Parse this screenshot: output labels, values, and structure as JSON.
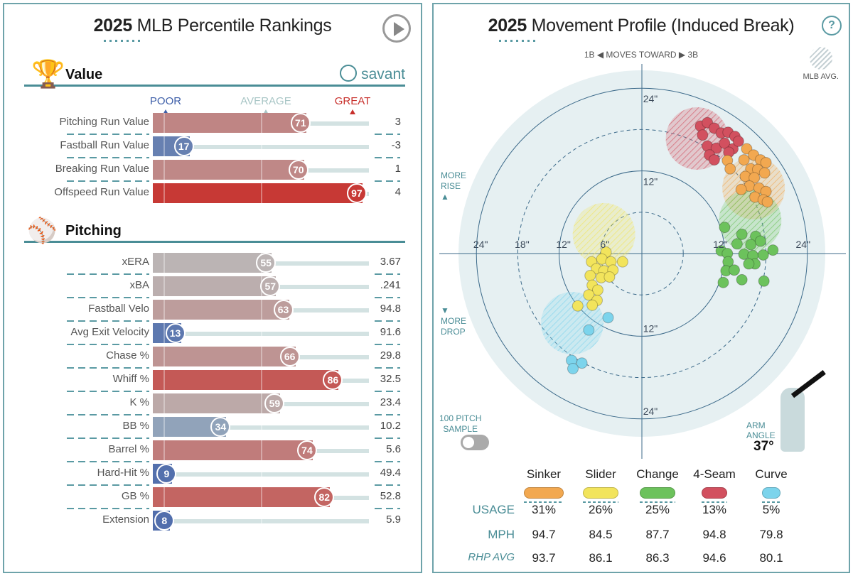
{
  "left": {
    "title_year": "2025",
    "title_rest": " MLB Percentile Rankings",
    "value_section": "Value",
    "pitching_section": "Pitching",
    "brand": "savant",
    "scale": {
      "poor": "POOR",
      "average": "AVERAGE",
      "great": "GREAT"
    },
    "colors": {
      "poor": "#3d5ea8",
      "average": "#b9c3c3",
      "great": "#c8302c"
    },
    "value_rows": [
      {
        "name": "Pitching Run Value",
        "percentile": 71,
        "value": "3"
      },
      {
        "name": "Fastball Run Value",
        "percentile": 17,
        "value": "-3"
      },
      {
        "name": "Breaking Run Value",
        "percentile": 70,
        "value": "1"
      },
      {
        "name": "Offspeed Run Value",
        "percentile": 97,
        "value": "4"
      }
    ],
    "pitching_rows": [
      {
        "name": "xERA",
        "percentile": 55,
        "value": "3.67"
      },
      {
        "name": "xBA",
        "percentile": 57,
        "value": ".241"
      },
      {
        "name": "Fastball Velo",
        "percentile": 63,
        "value": "94.8"
      },
      {
        "name": "Avg Exit Velocity",
        "percentile": 13,
        "value": "91.6"
      },
      {
        "name": "Chase %",
        "percentile": 66,
        "value": "29.8"
      },
      {
        "name": "Whiff %",
        "percentile": 86,
        "value": "32.5"
      },
      {
        "name": "K %",
        "percentile": 59,
        "value": "23.4"
      },
      {
        "name": "BB %",
        "percentile": 34,
        "value": "10.2"
      },
      {
        "name": "Barrel %",
        "percentile": 74,
        "value": "5.6"
      },
      {
        "name": "Hard-Hit %",
        "percentile": 9,
        "value": "49.4"
      },
      {
        "name": "GB %",
        "percentile": 82,
        "value": "52.8"
      },
      {
        "name": "Extension",
        "percentile": 8,
        "value": "5.9"
      }
    ]
  },
  "right": {
    "title_year": "2025",
    "title_rest": " Movement Profile (Induced Break)",
    "direction": "1B ◀ MOVES TOWARD ▶ 3B",
    "mlb_avg": "MLB AVG.",
    "more_rise": [
      "MORE",
      "RISE"
    ],
    "more_drop": [
      "MORE",
      "DROP"
    ],
    "ring_labels": [
      "6\"",
      "12\"",
      "18\"",
      "24\""
    ],
    "sample": [
      "100 PITCH",
      "SAMPLE"
    ],
    "arm_angle_label": [
      "ARM",
      "ANGLE"
    ],
    "arm_angle": "37°",
    "row_labels": {
      "usage": "USAGE",
      "mph": "MPH",
      "rhp": "RHP AVG"
    },
    "pitches": [
      {
        "name": "Sinker",
        "color": "#f2a850",
        "usage": "31%",
        "mph": "94.7",
        "rhp_avg": "93.7"
      },
      {
        "name": "Slider",
        "color": "#f2e45c",
        "usage": "26%",
        "mph": "84.5",
        "rhp_avg": "86.1"
      },
      {
        "name": "Change",
        "color": "#6cc25c",
        "usage": "25%",
        "mph": "87.7",
        "rhp_avg": "86.3"
      },
      {
        "name": "4-Seam",
        "color": "#d2505f",
        "usage": "13%",
        "mph": "94.8",
        "rhp_avg": "94.6"
      },
      {
        "name": "Curve",
        "color": "#7cd4ec",
        "usage": "5%",
        "mph": "79.8",
        "rhp_avg": "80.1"
      }
    ]
  },
  "chart_data": {
    "type": "scatter",
    "title": "2025 Movement Profile (Induced Break)",
    "xlabel": "1B ◀ MOVES TOWARD ▶ 3B",
    "units": "inches",
    "range": [
      -24,
      24
    ],
    "rings": [
      6,
      12,
      18,
      24
    ],
    "series": [
      {
        "name": "4-Seam",
        "avg": [
          8,
          16.7
        ],
        "points": [
          [
            8.5,
            18.5
          ],
          [
            9.5,
            19
          ],
          [
            10.5,
            18.2
          ],
          [
            8.8,
            17.2
          ],
          [
            11.5,
            17.5
          ],
          [
            12.5,
            17.6
          ],
          [
            13.5,
            17
          ],
          [
            9.5,
            15.6
          ],
          [
            10.8,
            15.3
          ],
          [
            12,
            16
          ],
          [
            13.2,
            15.2
          ],
          [
            9.8,
            14.3
          ],
          [
            10.5,
            13.6
          ],
          [
            12.6,
            14.7
          ],
          [
            14,
            16.3
          ]
        ]
      },
      {
        "name": "Sinker",
        "avg": [
          16.2,
          9.5
        ],
        "points": [
          [
            15.2,
            15.2
          ],
          [
            16.2,
            14.3
          ],
          [
            14.8,
            13.6
          ],
          [
            17.2,
            13.6
          ],
          [
            18,
            13.2
          ],
          [
            15.8,
            12.3
          ],
          [
            16.8,
            12.2
          ],
          [
            12.4,
            13.5
          ],
          [
            12.8,
            12.3
          ],
          [
            15,
            11.2
          ],
          [
            16.3,
            11
          ],
          [
            17.8,
            11.7
          ],
          [
            15.6,
            9.8
          ],
          [
            17,
            9.5
          ],
          [
            18,
            9
          ],
          [
            14.4,
            9.3
          ],
          [
            16.4,
            8.2
          ],
          [
            17.6,
            7.8
          ],
          [
            18.2,
            7.5
          ]
        ]
      },
      {
        "name": "Change",
        "avg": [
          15.7,
          4.8
        ],
        "points": [
          [
            12,
            3.8
          ],
          [
            14.5,
            2.8
          ],
          [
            16.5,
            2.5
          ],
          [
            13.8,
            1.4
          ],
          [
            15.8,
            1.3
          ],
          [
            17.2,
            1.8
          ],
          [
            19,
            0.5
          ],
          [
            11.5,
            0.4
          ],
          [
            12.4,
            0
          ],
          [
            14.8,
            -0.1
          ],
          [
            16.1,
            -0.3
          ],
          [
            17.6,
            -0.2
          ],
          [
            12.5,
            -1.2
          ],
          [
            16.4,
            -1.5
          ],
          [
            12.2,
            -2.5
          ],
          [
            13.4,
            -2.4
          ],
          [
            15.5,
            -1.5
          ],
          [
            14.5,
            -3.8
          ],
          [
            11.8,
            -4.2
          ],
          [
            17.7,
            -4
          ]
        ]
      },
      {
        "name": "Slider",
        "avg": [
          -5.5,
          2.8
        ],
        "points": [
          [
            -5.2,
            0.2
          ],
          [
            -5.8,
            -0.8
          ],
          [
            -7.3,
            -1.2
          ],
          [
            -4.5,
            -1.2
          ],
          [
            -2.8,
            -1.2
          ],
          [
            -6.6,
            -2.2
          ],
          [
            -5.5,
            -2.5
          ],
          [
            -4.2,
            -2.4
          ],
          [
            -7.5,
            -3.2
          ],
          [
            -5.9,
            -3.5
          ],
          [
            -4.7,
            -3.4
          ],
          [
            -7.2,
            -4.6
          ],
          [
            -6.4,
            -5.3
          ],
          [
            -7.7,
            -6
          ],
          [
            -6.5,
            -6.8
          ],
          [
            -9.3,
            -7.6
          ],
          [
            -7.2,
            -7.5
          ]
        ]
      },
      {
        "name": "Curve",
        "avg": [
          -10.1,
          -10.1
        ],
        "points": [
          [
            -4.9,
            -9.3
          ],
          [
            -7.7,
            -11.1
          ],
          [
            -10.2,
            -15.5
          ],
          [
            -8.7,
            -15.9
          ],
          [
            -10,
            -16.7
          ]
        ]
      }
    ]
  }
}
